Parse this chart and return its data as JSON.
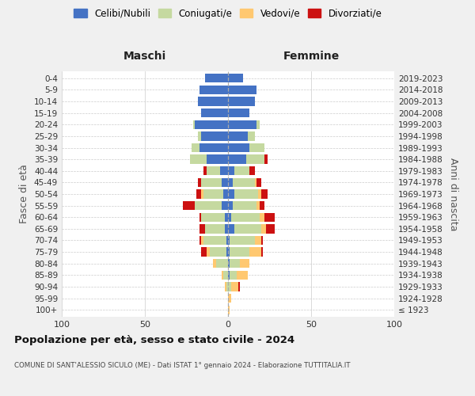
{
  "age_groups": [
    "100+",
    "95-99",
    "90-94",
    "85-89",
    "80-84",
    "75-79",
    "70-74",
    "65-69",
    "60-64",
    "55-59",
    "50-54",
    "45-49",
    "40-44",
    "35-39",
    "30-34",
    "25-29",
    "20-24",
    "15-19",
    "10-14",
    "5-9",
    "0-4"
  ],
  "birth_years": [
    "≤ 1923",
    "1924-1928",
    "1929-1933",
    "1934-1938",
    "1939-1943",
    "1944-1948",
    "1949-1953",
    "1954-1958",
    "1959-1963",
    "1964-1968",
    "1969-1973",
    "1974-1978",
    "1979-1983",
    "1984-1988",
    "1989-1993",
    "1994-1998",
    "1999-2003",
    "2004-2008",
    "2009-2013",
    "2014-2018",
    "2019-2023"
  ],
  "colors": {
    "celibi": "#4472c4",
    "coniugati": "#c5d9a0",
    "vedovi": "#ffc870",
    "divorziati": "#cc1111"
  },
  "male": {
    "celibi": [
      0,
      0,
      0,
      0,
      0,
      1,
      1,
      2,
      2,
      4,
      3,
      4,
      5,
      13,
      17,
      16,
      20,
      16,
      18,
      17,
      14
    ],
    "coniugati": [
      0,
      0,
      1,
      3,
      7,
      10,
      14,
      12,
      14,
      16,
      12,
      12,
      8,
      10,
      5,
      2,
      1,
      0,
      0,
      0,
      0
    ],
    "vedovi": [
      0,
      0,
      1,
      1,
      2,
      2,
      1,
      0,
      0,
      0,
      1,
      0,
      0,
      0,
      0,
      0,
      0,
      0,
      0,
      0,
      0
    ],
    "divorziati": [
      0,
      0,
      0,
      0,
      0,
      3,
      1,
      3,
      1,
      7,
      3,
      2,
      2,
      0,
      0,
      0,
      0,
      0,
      0,
      0,
      0
    ]
  },
  "female": {
    "celibi": [
      0,
      0,
      0,
      1,
      1,
      1,
      1,
      4,
      2,
      3,
      4,
      3,
      4,
      11,
      13,
      12,
      17,
      13,
      16,
      17,
      9
    ],
    "coniugati": [
      0,
      0,
      2,
      4,
      6,
      12,
      15,
      16,
      17,
      14,
      14,
      13,
      9,
      11,
      9,
      4,
      2,
      0,
      0,
      0,
      0
    ],
    "vedovi": [
      1,
      2,
      4,
      7,
      6,
      7,
      4,
      3,
      3,
      2,
      2,
      1,
      0,
      0,
      0,
      0,
      0,
      0,
      0,
      0,
      0
    ],
    "divorziati": [
      0,
      0,
      1,
      0,
      0,
      1,
      1,
      5,
      6,
      3,
      4,
      3,
      3,
      2,
      0,
      0,
      0,
      0,
      0,
      0,
      0
    ]
  },
  "xlim": 100,
  "title": "Popolazione per età, sesso e stato civile - 2024",
  "subtitle": "COMUNE DI SANT'ALESSIO SICULO (ME) - Dati ISTAT 1° gennaio 2024 - Elaborazione TUTTITALIA.IT",
  "xlabel_left": "Maschi",
  "xlabel_right": "Femmine",
  "ylabel_left": "Fasce di età",
  "ylabel_right": "Anni di nascita",
  "legend_labels": [
    "Celibi/Nubili",
    "Coniugati/e",
    "Vedovi/e",
    "Divorziati/e"
  ],
  "bg_color": "#f0f0f0",
  "plot_bg_color": "#ffffff",
  "grid_color": "#cccccc"
}
